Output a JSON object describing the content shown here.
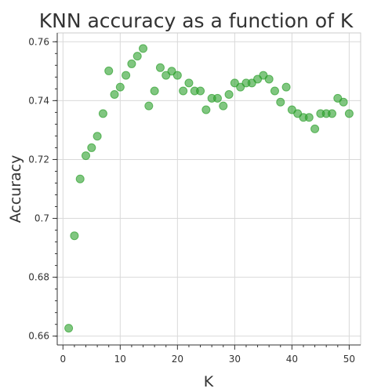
{
  "chart_data": {
    "type": "scatter",
    "title": "KNN accuracy as a function of K",
    "xlabel": "K",
    "ylabel": "Accuracy",
    "xlim": [
      -1,
      52
    ],
    "ylim": [
      0.657,
      0.763
    ],
    "x_ticks": [
      0,
      10,
      20,
      30,
      40,
      50
    ],
    "x_tick_labels": [
      "0",
      "10",
      "20",
      "30",
      "40",
      "50"
    ],
    "y_ticks": [
      0.66,
      0.68,
      0.7,
      0.72,
      0.74,
      0.76
    ],
    "y_tick_labels": [
      "0.66",
      "0.68",
      "0.7",
      "0.72",
      "0.74",
      "0.76"
    ],
    "grid": true,
    "color": "#2ca02c",
    "x": [
      1,
      2,
      3,
      4,
      5,
      6,
      7,
      8,
      9,
      10,
      11,
      12,
      13,
      14,
      15,
      16,
      17,
      18,
      19,
      20,
      21,
      22,
      23,
      24,
      25,
      26,
      27,
      28,
      29,
      30,
      31,
      32,
      33,
      34,
      35,
      36,
      37,
      38,
      39,
      40,
      41,
      42,
      43,
      44,
      45,
      46,
      47,
      48,
      49,
      50
    ],
    "y": [
      0.6627,
      0.6941,
      0.7134,
      0.7213,
      0.724,
      0.7279,
      0.7356,
      0.7501,
      0.7421,
      0.7446,
      0.7486,
      0.7525,
      0.7551,
      0.7577,
      0.7382,
      0.7433,
      0.7512,
      0.7486,
      0.75,
      0.7486,
      0.7433,
      0.746,
      0.7433,
      0.7433,
      0.7369,
      0.7408,
      0.7408,
      0.7382,
      0.7421,
      0.746,
      0.7446,
      0.746,
      0.746,
      0.7473,
      0.7486,
      0.7473,
      0.7433,
      0.7395,
      0.7446,
      0.7369,
      0.7356,
      0.7343,
      0.7343,
      0.7304,
      0.7356,
      0.7356,
      0.7356,
      0.7408,
      0.7395,
      0.7356
    ]
  }
}
